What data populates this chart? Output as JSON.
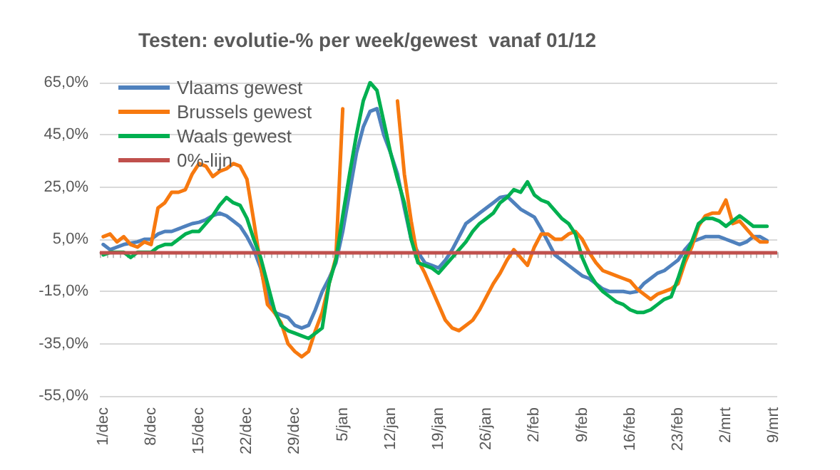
{
  "chart_data": {
    "type": "line",
    "title": "Testen: evolutie-% per week/gewest  vanaf 01/12",
    "categories": [
      "1/dec",
      null,
      null,
      null,
      null,
      null,
      null,
      "8/dec",
      null,
      null,
      null,
      null,
      null,
      null,
      "15/dec",
      null,
      null,
      null,
      null,
      null,
      null,
      "22/dec",
      null,
      null,
      null,
      null,
      null,
      null,
      "29/dec",
      null,
      null,
      null,
      null,
      null,
      null,
      "5/jan",
      null,
      null,
      null,
      null,
      null,
      null,
      "12/jan",
      null,
      null,
      null,
      null,
      null,
      null,
      "19/jan",
      null,
      null,
      null,
      null,
      null,
      null,
      "26/jan",
      null,
      null,
      null,
      null,
      null,
      null,
      "2/feb",
      null,
      null,
      null,
      null,
      null,
      null,
      "9/feb",
      null,
      null,
      null,
      null,
      null,
      null,
      "16/feb",
      null,
      null,
      null,
      null,
      null,
      null,
      "23/feb",
      null,
      null,
      null,
      null,
      null,
      null,
      "2/mrt",
      null,
      null,
      null,
      null,
      null,
      null,
      "9/mrt"
    ],
    "series": [
      {
        "name": "Vlaams gewest",
        "color": "#4f81bd",
        "values": [
          3,
          1,
          2,
          3,
          3.5,
          4,
          5,
          5,
          7,
          8,
          8,
          9,
          10,
          11,
          11.5,
          12.5,
          14,
          15,
          14,
          12,
          10,
          6,
          1,
          -6,
          -17,
          -23,
          -24,
          -25,
          -28,
          -29,
          -28,
          -22,
          -15,
          -10,
          -4,
          8,
          23,
          38,
          48,
          54,
          55,
          45,
          38,
          30,
          17,
          5,
          0,
          -4,
          -5,
          -6,
          -3,
          1,
          6,
          11,
          13,
          15,
          17,
          19,
          21,
          21.5,
          19,
          16.5,
          15,
          13.5,
          9,
          4,
          -1,
          -3,
          -5,
          -7,
          -9,
          -10,
          -12,
          -14,
          -15,
          -15,
          -15,
          -15.5,
          -15,
          -12,
          -10,
          -8,
          -7,
          -5,
          -3,
          1,
          4,
          5,
          6,
          6,
          6,
          5,
          4,
          3,
          4,
          6,
          6,
          4.5,
          null
        ]
      },
      {
        "name": "Brussels gewest",
        "color": "#f7790f",
        "values": [
          6,
          7,
          4,
          6,
          3,
          2,
          4,
          3,
          17,
          19,
          23,
          23,
          24,
          30,
          34,
          33,
          29,
          31,
          32,
          34,
          33,
          28,
          12,
          -5,
          -20,
          -23,
          -27,
          -35,
          -38,
          -40,
          -38,
          -30,
          -23,
          -12,
          -2,
          55,
          null,
          null,
          null,
          null,
          null,
          null,
          null,
          58,
          30,
          12,
          -3,
          -8,
          -14,
          -20,
          -26,
          -29,
          -30,
          -28,
          -26,
          -22,
          -17,
          -12,
          -8,
          -3,
          1,
          -2,
          -5,
          2,
          7,
          7,
          5,
          5,
          7,
          8,
          5,
          0,
          -4,
          -7,
          -8,
          -9,
          -10,
          -11,
          -14,
          -16,
          -18,
          -16,
          -15,
          -14,
          -12,
          -4,
          2,
          10,
          14,
          15,
          15,
          20,
          11,
          12,
          9,
          6,
          4,
          4,
          null
        ]
      },
      {
        "name": "Waals gewest",
        "color": "#00b050",
        "values": [
          -1,
          0,
          0,
          0,
          -2,
          0,
          0,
          0,
          2,
          3,
          3,
          5,
          7,
          8,
          8,
          11,
          14,
          18,
          21,
          19,
          18,
          13,
          5,
          -2,
          -12,
          -22,
          -28,
          -30,
          -31,
          -32,
          -33,
          -31,
          -29,
          -12,
          -3,
          14,
          30,
          45,
          58,
          65,
          62,
          50,
          38,
          28,
          19,
          5,
          -4,
          -5,
          -6,
          -8,
          -5,
          -2,
          1,
          4,
          8,
          11,
          13,
          15,
          19,
          21,
          24,
          23,
          27,
          22,
          20,
          19,
          16,
          13,
          11,
          7,
          -2,
          -8,
          -12,
          -15,
          -17,
          -19,
          -20,
          -22,
          -23,
          -23,
          -22,
          -20,
          -18,
          -17,
          -10,
          -2,
          4,
          11,
          13,
          13,
          12,
          10,
          12,
          14,
          12,
          10,
          10,
          10,
          null
        ]
      }
    ],
    "ref_lines": [
      {
        "axis": "y",
        "value": 0,
        "label": "0%-lijn",
        "color": "#c0504d"
      }
    ],
    "ylim": [
      -55,
      65
    ],
    "yticks": [
      {
        "value": -55,
        "label": "-55,0%"
      },
      {
        "value": -35,
        "label": "-35,0%"
      },
      {
        "value": -15,
        "label": "-15,0%"
      },
      {
        "value": 5,
        "label": "5,0%"
      },
      {
        "value": 25,
        "label": "25,0%"
      },
      {
        "value": 45,
        "label": "45,0%"
      },
      {
        "value": 65,
        "label": "65,0%"
      }
    ],
    "grid": "y",
    "legend": "top left",
    "marker": "none",
    "line_style": "solid"
  }
}
